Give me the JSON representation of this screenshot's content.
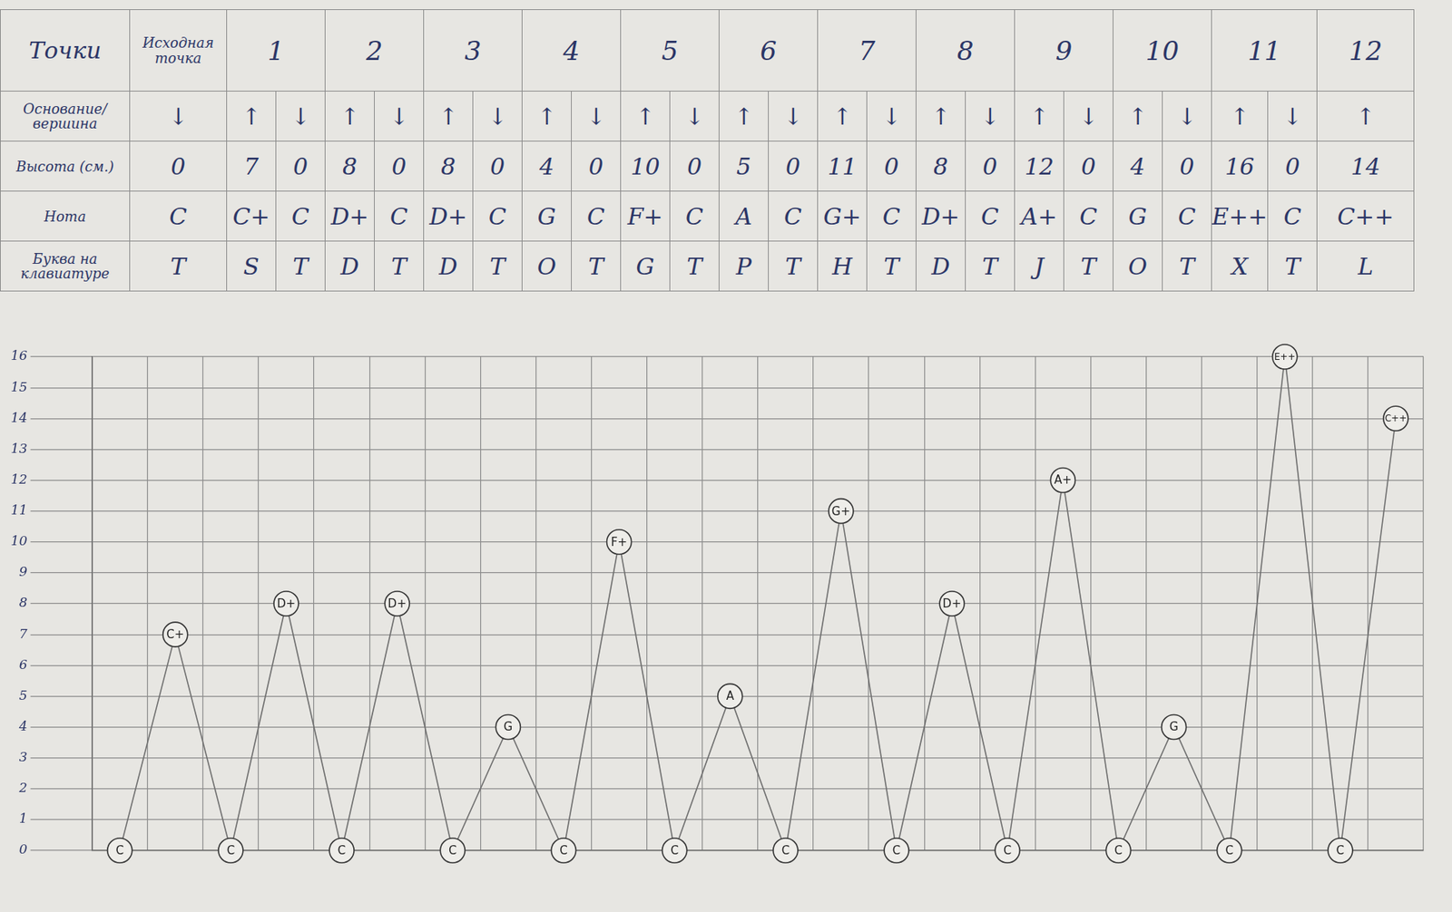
{
  "table": {
    "row_headers": [
      "Точки",
      "Основание/ вершина",
      "Высота (см.)",
      "Нота",
      "Буква на клавиатуре"
    ],
    "columns": [
      {
        "point": "Исходная точка",
        "cells": [
          [
            "↓",
            0,
            "C",
            "T"
          ]
        ]
      },
      {
        "point": "1",
        "cells": [
          [
            "↑",
            7,
            "C+",
            "S"
          ],
          [
            "↓",
            0,
            "C",
            "T"
          ]
        ]
      },
      {
        "point": "2",
        "cells": [
          [
            "↑",
            8,
            "D+",
            "D"
          ],
          [
            "↓",
            0,
            "C",
            "T"
          ]
        ]
      },
      {
        "point": "3",
        "cells": [
          [
            "↑",
            8,
            "D+",
            "D"
          ],
          [
            "↓",
            0,
            "C",
            "T"
          ]
        ]
      },
      {
        "point": "4",
        "cells": [
          [
            "↑",
            4,
            "G",
            "O"
          ],
          [
            "↓",
            0,
            "C",
            "T"
          ]
        ]
      },
      {
        "point": "5",
        "cells": [
          [
            "↑",
            10,
            "F+",
            "G"
          ],
          [
            "↓",
            0,
            "C",
            "T"
          ]
        ]
      },
      {
        "point": "6",
        "cells": [
          [
            "↑",
            5,
            "A",
            "P"
          ],
          [
            "↓",
            0,
            "C",
            "T"
          ]
        ]
      },
      {
        "point": "7",
        "cells": [
          [
            "↑",
            11,
            "G+",
            "H"
          ],
          [
            "↓",
            0,
            "C",
            "T"
          ]
        ]
      },
      {
        "point": "8",
        "cells": [
          [
            "↑",
            8,
            "D+",
            "D"
          ],
          [
            "↓",
            0,
            "C",
            "T"
          ]
        ]
      },
      {
        "point": "9",
        "cells": [
          [
            "↑",
            12,
            "A+",
            "J"
          ],
          [
            "↓",
            0,
            "C",
            "T"
          ]
        ]
      },
      {
        "point": "10",
        "cells": [
          [
            "↑",
            4,
            "G",
            "O"
          ],
          [
            "↓",
            0,
            "C",
            "T"
          ]
        ]
      },
      {
        "point": "11",
        "cells": [
          [
            "↑",
            16,
            "E++",
            "X"
          ],
          [
            "↓",
            0,
            "C",
            "T"
          ]
        ]
      },
      {
        "point": "12",
        "cells": [
          [
            "↑",
            14,
            "C++",
            "L"
          ]
        ]
      }
    ]
  },
  "chart_data": {
    "type": "line",
    "categories": [
      null,
      null,
      null,
      null,
      null,
      null,
      null,
      null,
      null,
      null,
      null,
      null,
      null,
      null,
      null,
      null,
      null,
      null,
      null,
      null,
      null,
      null,
      null,
      null
    ],
    "values": [
      0,
      7,
      0,
      8,
      0,
      8,
      0,
      4,
      0,
      10,
      0,
      5,
      0,
      11,
      0,
      8,
      0,
      12,
      0,
      4,
      0,
      16,
      0,
      14
    ],
    "point_labels": [
      "C",
      "C+",
      "C",
      "D+",
      "C",
      "D+",
      "C",
      "G",
      "C",
      "F+",
      "C",
      "A",
      "C",
      "G+",
      "C",
      "D+",
      "C",
      "A+",
      "C",
      "G",
      "C",
      "E++",
      "C",
      "C++"
    ],
    "color": "#6e6e6e",
    "ylim": [
      0,
      16
    ],
    "yticks": [
      0,
      1,
      2,
      3,
      4,
      5,
      6,
      7,
      8,
      9,
      10,
      11,
      12,
      13,
      14,
      15,
      16
    ],
    "grid": true,
    "tick_labels": "y"
  }
}
